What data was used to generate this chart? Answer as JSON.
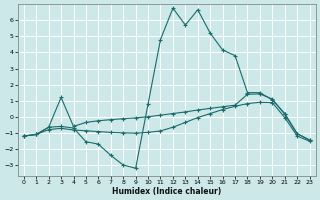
{
  "xlabel": "Humidex (Indice chaleur)",
  "xlim": [
    -0.5,
    23.5
  ],
  "ylim": [
    -3.7,
    7.0
  ],
  "yticks": [
    -3,
    -2,
    -1,
    0,
    1,
    2,
    3,
    4,
    5,
    6
  ],
  "xticks": [
    0,
    1,
    2,
    3,
    4,
    5,
    6,
    7,
    8,
    9,
    10,
    11,
    12,
    13,
    14,
    15,
    16,
    17,
    18,
    19,
    20,
    21,
    22,
    23
  ],
  "bg_color": "#cce8e8",
  "grid_color": "#ffffff",
  "line_color": "#1a6b6b",
  "curve1_x": [
    0,
    1,
    2,
    3,
    4,
    5,
    6,
    7,
    8,
    9,
    10,
    11,
    12,
    13,
    14,
    15,
    16,
    17,
    18,
    19,
    20,
    21,
    22,
    23
  ],
  "curve1_y": [
    -1.2,
    -1.1,
    -0.65,
    -0.6,
    -0.7,
    -1.55,
    -1.7,
    -2.4,
    -3.0,
    -3.2,
    0.8,
    4.8,
    6.75,
    5.7,
    6.65,
    5.2,
    4.15,
    3.8,
    1.5,
    1.5,
    1.05,
    0.2,
    -1.05,
    -1.45
  ],
  "curve2_x": [
    0,
    1,
    2,
    3,
    4,
    5,
    6,
    7,
    8,
    9,
    10,
    11,
    12,
    13,
    14,
    15,
    16,
    17,
    18,
    19,
    20,
    21,
    22,
    23
  ],
  "curve2_y": [
    -1.2,
    -1.1,
    -0.65,
    1.2,
    -0.6,
    -0.35,
    -0.25,
    -0.18,
    -0.12,
    -0.07,
    0.0,
    0.1,
    0.2,
    0.3,
    0.42,
    0.52,
    0.62,
    0.72,
    1.4,
    1.42,
    1.1,
    0.15,
    -1.05,
    -1.45
  ],
  "curve3_x": [
    0,
    1,
    2,
    3,
    4,
    5,
    6,
    7,
    8,
    9,
    10,
    11,
    12,
    13,
    14,
    15,
    16,
    17,
    18,
    19,
    20,
    21,
    22,
    23
  ],
  "curve3_y": [
    -1.2,
    -1.1,
    -0.8,
    -0.72,
    -0.82,
    -0.87,
    -0.92,
    -0.97,
    -1.0,
    -1.02,
    -0.97,
    -0.88,
    -0.65,
    -0.35,
    -0.05,
    0.2,
    0.45,
    0.65,
    0.82,
    0.9,
    0.88,
    -0.05,
    -1.2,
    -1.52
  ]
}
